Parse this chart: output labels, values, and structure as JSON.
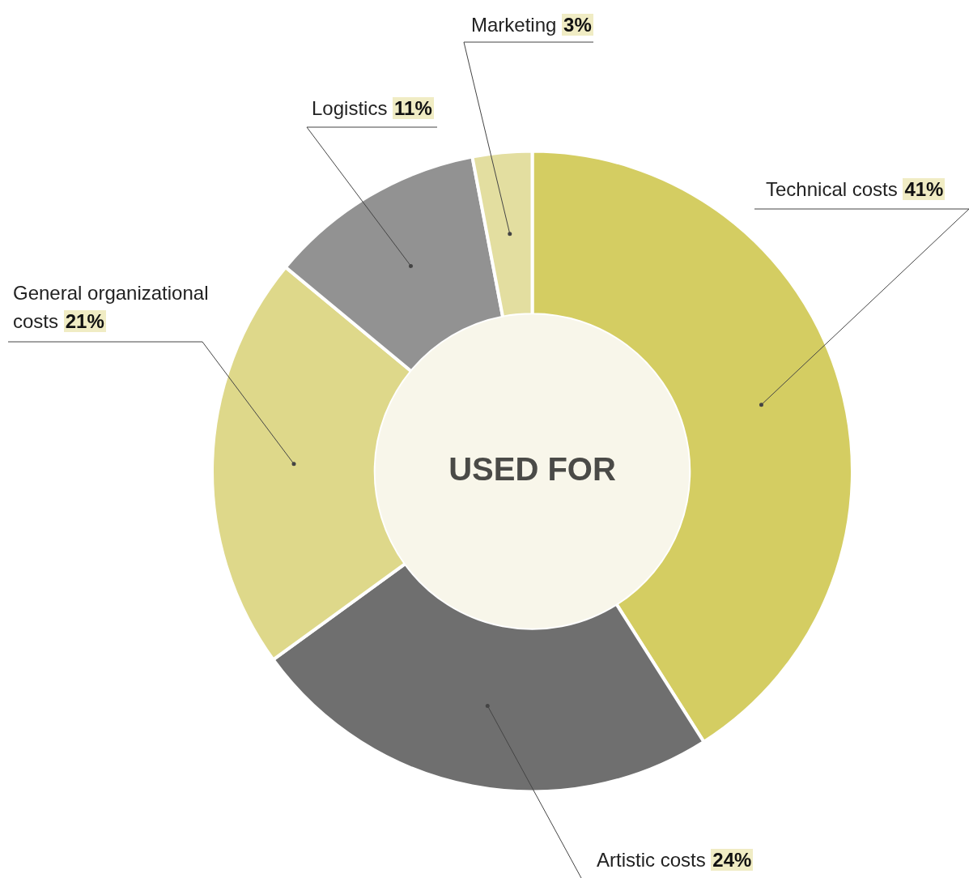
{
  "chart_data": {
    "type": "donut",
    "title": "USED FOR",
    "categories": [
      "Technical costs",
      "Artistic costs",
      "General organizational costs",
      "Logistics",
      "Marketing"
    ],
    "values": [
      41,
      24,
      21,
      11,
      3
    ],
    "value_labels": [
      "41%",
      "24%",
      "21%",
      "11%",
      "3%"
    ],
    "colors": [
      "#d4cd62",
      "#6f6f6f",
      "#ded88a",
      "#929292",
      "#e3dea0"
    ],
    "legend": false
  }
}
